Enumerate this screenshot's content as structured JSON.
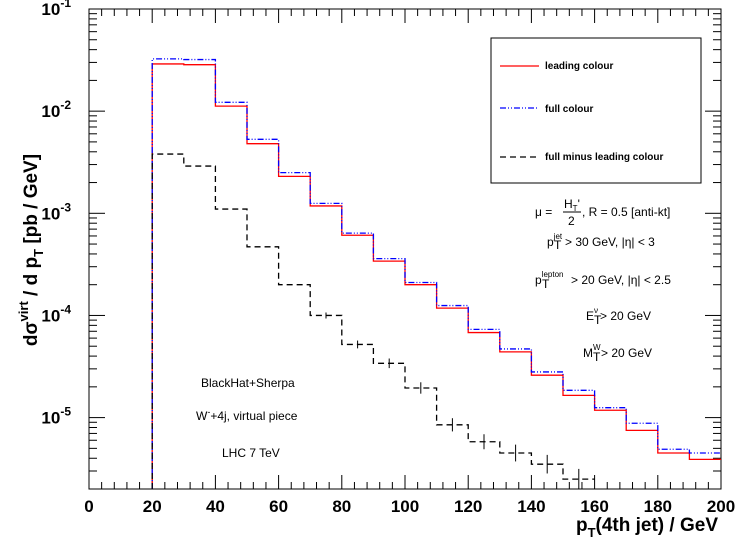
{
  "chart_data": {
    "type": "line",
    "step": true,
    "ylog": true,
    "xlim": [
      0,
      200
    ],
    "ylim": [
      2e-06,
      0.1
    ],
    "bin_edges": [
      20,
      30,
      40,
      50,
      60,
      70,
      80,
      90,
      100,
      110,
      120,
      130,
      140,
      150,
      160,
      170,
      180,
      190,
      200
    ],
    "xlabel_main": "p",
    "xlabel_sub": "T",
    "xlabel_rest": "(4th jet) / GeV",
    "ylabel": {
      "d": "d",
      "sigma": "σ",
      "sup": "virt",
      "mid": " / d p",
      "sub": "T",
      "unit": "  [pb / GeV]"
    },
    "x_ticks": [
      "0",
      "20",
      "40",
      "60",
      "80",
      "100",
      "120",
      "140",
      "160",
      "180",
      "200"
    ],
    "y_ticks": [
      {
        "value": 0.1,
        "base": "10",
        "exp": "-1"
      },
      {
        "value": 0.01,
        "base": "10",
        "exp": "-2"
      },
      {
        "value": 0.001,
        "base": "10",
        "exp": "-3"
      },
      {
        "value": 0.0001,
        "base": "10",
        "exp": "-4"
      },
      {
        "value": 1e-05,
        "base": "10",
        "exp": "-5"
      }
    ],
    "series": [
      {
        "name": "leading colour",
        "color": "#ff0000",
        "style": "solid",
        "values": [
          0.029,
          0.0285,
          0.0112,
          0.0048,
          0.0023,
          0.00118,
          0.00061,
          0.00034,
          0.0002,
          0.000118,
          6.8e-05,
          4.4e-05,
          2.6e-05,
          1.65e-05,
          1.18e-05,
          7.5e-06,
          4.5e-06,
          3.9e-06
        ]
      },
      {
        "name": "full colour",
        "color": "#0000ff",
        "style": "dashdotdot",
        "values": [
          0.0325,
          0.032,
          0.0122,
          0.0053,
          0.0025,
          0.00125,
          0.00064,
          0.00036,
          0.00021,
          0.000125,
          7.3e-05,
          4.7e-05,
          2.8e-05,
          1.85e-05,
          1.25e-05,
          8.8e-06,
          4.9e-06,
          4.5e-06
        ]
      },
      {
        "name": "full minus leading colour",
        "color": "#000000",
        "style": "dashed",
        "values": [
          0.0038,
          0.0029,
          0.0011,
          0.00047,
          0.0002,
          0.0001,
          5.2e-05,
          3.4e-05,
          1.95e-05,
          8.5e-06,
          5.8e-06,
          4.5e-06,
          3.5e-06,
          2.5e-06,
          null,
          null,
          null,
          null
        ]
      }
    ],
    "legend_position": "top-right",
    "legend": [
      {
        "label": "leading colour",
        "color": "#ff0000",
        "style": "solid"
      },
      {
        "label": "full colour",
        "color": "#0000ff",
        "style": "dashdotdot"
      },
      {
        "label": "full minus leading colour",
        "color": "#000000",
        "style": "dashed"
      }
    ],
    "annotations": {
      "mu_prefix": "μ =",
      "mu_num": "H",
      "mu_num_sub": "T",
      "mu_num_prime": "'",
      "mu_den": "2",
      "mu_rest": ",  R = 0.5 [anti-kt]",
      "cut_jet_p": "p",
      "cut_jet_sup": "jet",
      "cut_jet_sub": "T",
      "cut_jet_rest": " > 30 GeV, |η| < 3",
      "cut_lep_p": "p",
      "cut_lep_sup": "lepton",
      "cut_lep_sub": "T",
      "cut_lep_rest": " > 20 GeV, |η| < 2.5",
      "cut_et_e": "E",
      "cut_et_sup": "ν",
      "cut_et_sub": "T",
      "cut_et_rest": " > 20 GeV",
      "cut_mt_m": "M",
      "cut_mt_sup": "W",
      "cut_mt_sub": "T",
      "cut_mt_rest": " > 20 GeV",
      "generator": "BlackHat+Sherpa",
      "process_w": "W",
      "process_sup": "-",
      "process_rest": "+4j, virtual piece",
      "collider": "LHC 7 TeV"
    }
  }
}
